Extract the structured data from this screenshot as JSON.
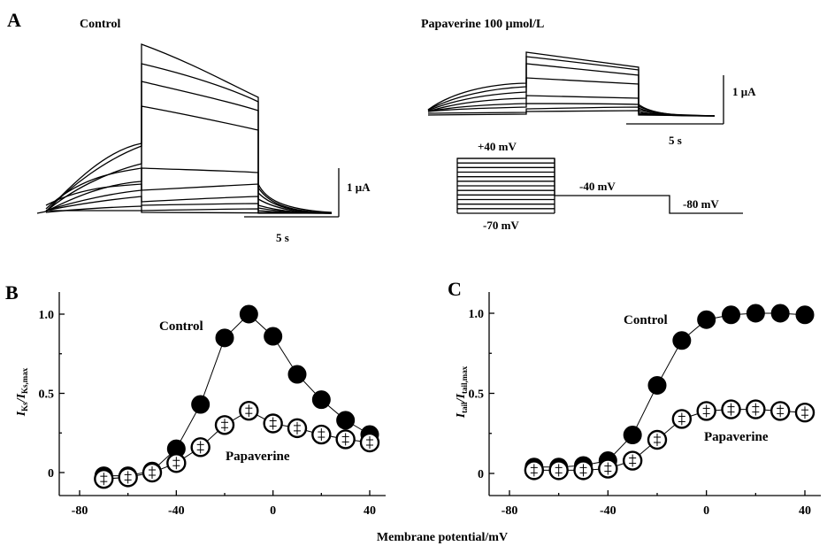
{
  "panel_A": {
    "label": "A",
    "control_title": "Control",
    "drug_title_prefix": "Papaverine 100 ",
    "drug_title_unit": "μmol/L",
    "scale_current_left": "1 μA",
    "scale_time_left": "5 s",
    "scale_current_right": "1 μA",
    "scale_time_right": "5 s",
    "protocol": {
      "top_voltage": "+40 mV",
      "bottom_voltage": "-70 mV",
      "tail_voltage": "-40 mV",
      "holding_voltage": "-80 mV"
    }
  },
  "shared_xlabel": "Membrane potential/mV",
  "chart_data": [
    {
      "panel": "B",
      "type": "scatter",
      "ylabel_main": "I",
      "ylabel_sub1": "Ks",
      "ylabel_sep": "/I",
      "ylabel_sub2": "Ks,max",
      "xlim": [
        -80,
        45
      ],
      "ylim": [
        -0.1,
        1.15
      ],
      "xticks": [
        -80,
        -40,
        0,
        40
      ],
      "yticks": [
        0,
        0.5,
        1.0
      ],
      "ytick_labels": [
        "0",
        "0.5",
        "1.0"
      ],
      "series": [
        {
          "name": "Control",
          "marker": "filled-circle",
          "x": [
            -70,
            -60,
            -50,
            -40,
            -30,
            -20,
            -10,
            0,
            10,
            20,
            30,
            40
          ],
          "y": [
            -0.02,
            -0.02,
            0.01,
            0.15,
            0.43,
            0.85,
            1.0,
            0.86,
            0.62,
            0.46,
            0.33,
            0.24
          ]
        },
        {
          "name": "Papaverine",
          "marker": "open-circle",
          "x": [
            -70,
            -60,
            -50,
            -40,
            -30,
            -20,
            -10,
            0,
            10,
            20,
            30,
            40
          ],
          "y": [
            -0.04,
            -0.03,
            0.0,
            0.06,
            0.16,
            0.3,
            0.39,
            0.31,
            0.28,
            0.24,
            0.21,
            0.19
          ]
        }
      ]
    },
    {
      "panel": "C",
      "type": "scatter",
      "ylabel_main": "I",
      "ylabel_sub1": "tail",
      "ylabel_sep": "/I",
      "ylabel_sub2": "tail,max",
      "xlim": [
        -80,
        45
      ],
      "ylim": [
        -0.1,
        1.15
      ],
      "xticks": [
        -80,
        -40,
        0,
        40
      ],
      "yticks": [
        0,
        0.5,
        1.0
      ],
      "ytick_labels": [
        "0",
        "0.5",
        "1.0"
      ],
      "series": [
        {
          "name": "Control",
          "marker": "filled-circle",
          "x": [
            -70,
            -60,
            -50,
            -40,
            -30,
            -20,
            -10,
            0,
            10,
            20,
            30,
            40
          ],
          "y": [
            0.04,
            0.04,
            0.05,
            0.08,
            0.24,
            0.55,
            0.83,
            0.96,
            0.99,
            1.0,
            1.0,
            0.99
          ]
        },
        {
          "name": "Papaverine",
          "marker": "open-circle",
          "x": [
            -70,
            -60,
            -50,
            -40,
            -30,
            -20,
            -10,
            0,
            10,
            20,
            30,
            40
          ],
          "y": [
            0.02,
            0.02,
            0.02,
            0.03,
            0.08,
            0.21,
            0.34,
            0.39,
            0.4,
            0.4,
            0.39,
            0.38
          ]
        }
      ]
    }
  ]
}
